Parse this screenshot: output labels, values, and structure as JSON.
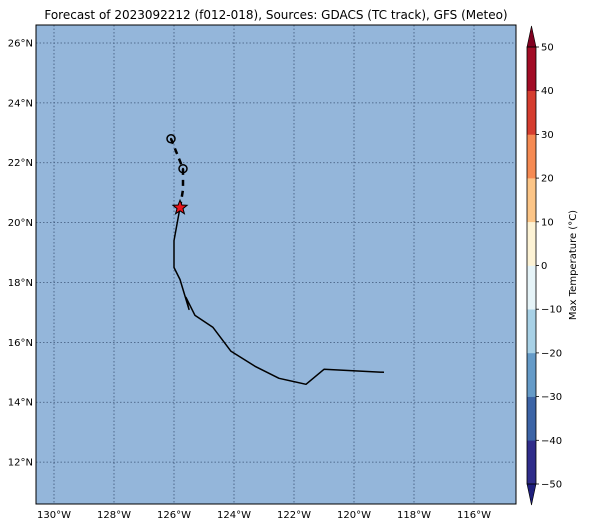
{
  "title": "Forecast of 2023092212 (f012-018), Sources: GDACS (TC track), GFS (Meteo)",
  "map": {
    "ocean_color": "#94b6da",
    "grid_color": "#3d5578",
    "lon_range": [
      -130.6,
      -114.6
    ],
    "lat_range": [
      10.6,
      26.6
    ],
    "lon_ticks": [
      {
        "value": -130,
        "label": "130°W"
      },
      {
        "value": -128,
        "label": "128°W"
      },
      {
        "value": -126,
        "label": "126°W"
      },
      {
        "value": -124,
        "label": "124°W"
      },
      {
        "value": -122,
        "label": "122°W"
      },
      {
        "value": -120,
        "label": "120°W"
      },
      {
        "value": -118,
        "label": "118°W"
      },
      {
        "value": -116,
        "label": "116°W"
      }
    ],
    "lat_ticks": [
      {
        "value": 12,
        "label": "12°N"
      },
      {
        "value": 14,
        "label": "14°N"
      },
      {
        "value": 16,
        "label": "16°N"
      },
      {
        "value": 18,
        "label": "18°N"
      },
      {
        "value": 20,
        "label": "20°N"
      },
      {
        "value": 22,
        "label": "22°N"
      },
      {
        "value": 24,
        "label": "24°N"
      },
      {
        "value": 26,
        "label": "26°N"
      }
    ]
  },
  "track": {
    "past": [
      [
        -119.0,
        15.0
      ],
      [
        -121.0,
        15.1
      ],
      [
        -121.6,
        14.6
      ],
      [
        -122.5,
        14.8
      ],
      [
        -123.3,
        15.2
      ],
      [
        -124.1,
        15.7
      ],
      [
        -124.7,
        16.5
      ],
      [
        -125.3,
        16.9
      ],
      [
        -125.6,
        17.5
      ],
      [
        -125.5,
        17.1
      ],
      [
        -125.8,
        18.1
      ],
      [
        -126.0,
        18.5
      ],
      [
        -126.0,
        19.4
      ],
      [
        -125.8,
        20.5
      ]
    ],
    "forecast": [
      [
        -125.8,
        20.5
      ],
      [
        -125.7,
        21.1
      ],
      [
        -125.7,
        21.8
      ],
      [
        -125.9,
        22.3
      ],
      [
        -126.1,
        22.8
      ]
    ],
    "forecast_points": [
      [
        -125.7,
        21.8
      ],
      [
        -126.1,
        22.8
      ]
    ],
    "current_position": [
      -125.8,
      20.5
    ],
    "line_color": "#000000",
    "star_color": "#e8141c"
  },
  "colorbar": {
    "label": "Max Temperature (°C)",
    "levels": [
      -50,
      -40,
      -30,
      -20,
      -10,
      0,
      10,
      20,
      30,
      40,
      50
    ],
    "tick_labels": [
      "−50",
      "−40",
      "−30",
      "−20",
      "−10",
      "0",
      "10",
      "20",
      "30",
      "40",
      "50"
    ],
    "colors": [
      "#2f2c8a",
      "#3c64a6",
      "#659bc8",
      "#a8d1e6",
      "#e6f4f8",
      "#fdf3d5",
      "#fcc587",
      "#f58a53",
      "#d53d2f",
      "#a20c26"
    ],
    "under_color": "#1e1e7c",
    "over_color": "#800020"
  }
}
